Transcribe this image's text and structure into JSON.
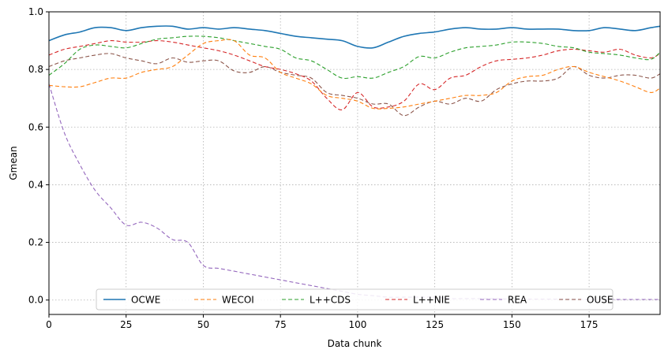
{
  "chart_data": {
    "type": "line",
    "title": "",
    "xlabel": "Data chunk",
    "ylabel": "Gmean",
    "xlim": [
      0,
      198
    ],
    "ylim": [
      -0.05,
      1.0
    ],
    "xticks": [
      0,
      25,
      50,
      75,
      100,
      125,
      150,
      175
    ],
    "yticks": [
      0.0,
      0.2,
      0.4,
      0.6,
      0.8,
      1.0
    ],
    "grid": true,
    "legend_position": "bottom-center",
    "series": [
      {
        "name": "OCWE",
        "color": "#1f77b4",
        "dash": "solid",
        "x": [
          0,
          5,
          10,
          15,
          20,
          25,
          30,
          35,
          40,
          45,
          50,
          55,
          60,
          65,
          70,
          75,
          80,
          85,
          90,
          95,
          100,
          105,
          110,
          115,
          120,
          125,
          130,
          135,
          140,
          145,
          150,
          155,
          160,
          165,
          170,
          175,
          180,
          185,
          190,
          195,
          198
        ],
        "y": [
          0.9,
          0.92,
          0.93,
          0.945,
          0.945,
          0.935,
          0.945,
          0.95,
          0.95,
          0.94,
          0.945,
          0.94,
          0.945,
          0.94,
          0.935,
          0.925,
          0.915,
          0.91,
          0.905,
          0.9,
          0.88,
          0.875,
          0.895,
          0.915,
          0.925,
          0.93,
          0.94,
          0.945,
          0.94,
          0.94,
          0.945,
          0.94,
          0.94,
          0.94,
          0.935,
          0.935,
          0.945,
          0.94,
          0.935,
          0.945,
          0.95
        ]
      },
      {
        "name": "WECOI",
        "color": "#ff7f0e",
        "dash": "5,3",
        "x": [
          0,
          5,
          10,
          15,
          20,
          25,
          30,
          35,
          40,
          45,
          50,
          55,
          60,
          65,
          70,
          75,
          80,
          85,
          90,
          95,
          100,
          105,
          110,
          115,
          120,
          125,
          130,
          135,
          140,
          145,
          150,
          155,
          160,
          165,
          170,
          175,
          180,
          185,
          190,
          195,
          198
        ],
        "y": [
          0.745,
          0.74,
          0.74,
          0.755,
          0.77,
          0.77,
          0.79,
          0.8,
          0.81,
          0.85,
          0.89,
          0.9,
          0.9,
          0.85,
          0.84,
          0.79,
          0.77,
          0.75,
          0.71,
          0.7,
          0.69,
          0.665,
          0.665,
          0.67,
          0.68,
          0.69,
          0.7,
          0.71,
          0.71,
          0.72,
          0.76,
          0.775,
          0.78,
          0.8,
          0.81,
          0.79,
          0.775,
          0.76,
          0.74,
          0.72,
          0.735
        ]
      },
      {
        "name": "L++CDS",
        "color": "#2ca02c",
        "dash": "5,3",
        "x": [
          0,
          5,
          10,
          15,
          20,
          25,
          30,
          35,
          40,
          45,
          50,
          55,
          60,
          65,
          70,
          75,
          80,
          85,
          90,
          95,
          100,
          105,
          110,
          115,
          120,
          125,
          130,
          135,
          140,
          145,
          150,
          155,
          160,
          165,
          170,
          175,
          180,
          185,
          190,
          195,
          198
        ],
        "y": [
          0.78,
          0.82,
          0.87,
          0.885,
          0.88,
          0.875,
          0.89,
          0.905,
          0.91,
          0.915,
          0.915,
          0.91,
          0.9,
          0.89,
          0.88,
          0.87,
          0.84,
          0.83,
          0.8,
          0.77,
          0.775,
          0.77,
          0.79,
          0.81,
          0.845,
          0.84,
          0.86,
          0.875,
          0.88,
          0.885,
          0.895,
          0.895,
          0.89,
          0.88,
          0.875,
          0.86,
          0.855,
          0.85,
          0.84,
          0.835,
          0.86
        ]
      },
      {
        "name": "L++NIE",
        "color": "#d62728",
        "dash": "5,3",
        "x": [
          0,
          5,
          10,
          15,
          20,
          25,
          30,
          35,
          40,
          45,
          50,
          55,
          60,
          65,
          70,
          75,
          80,
          85,
          90,
          95,
          100,
          105,
          110,
          115,
          120,
          125,
          130,
          135,
          140,
          145,
          150,
          155,
          160,
          165,
          170,
          175,
          180,
          185,
          190,
          195,
          198
        ],
        "y": [
          0.85,
          0.87,
          0.88,
          0.89,
          0.9,
          0.895,
          0.895,
          0.9,
          0.895,
          0.885,
          0.875,
          0.865,
          0.85,
          0.83,
          0.81,
          0.8,
          0.785,
          0.76,
          0.7,
          0.66,
          0.72,
          0.67,
          0.67,
          0.69,
          0.75,
          0.73,
          0.77,
          0.78,
          0.81,
          0.83,
          0.835,
          0.84,
          0.85,
          0.865,
          0.87,
          0.865,
          0.86,
          0.87,
          0.85,
          0.84,
          0.855
        ]
      },
      {
        "name": "REA",
        "color": "#9467bd",
        "dash": "5,3",
        "x": [
          0,
          5,
          10,
          15,
          20,
          25,
          30,
          35,
          40,
          45,
          50,
          55,
          60,
          65,
          70,
          75,
          80,
          85,
          90,
          95,
          100,
          105,
          110,
          115,
          120,
          125,
          130,
          135,
          140,
          145,
          150,
          155,
          160,
          165,
          170,
          175,
          180,
          185,
          190,
          195,
          198
        ],
        "y": [
          0.75,
          0.58,
          0.47,
          0.38,
          0.32,
          0.26,
          0.27,
          0.25,
          0.21,
          0.2,
          0.12,
          0.11,
          0.1,
          0.09,
          0.08,
          0.07,
          0.06,
          0.05,
          0.04,
          0.03,
          0.02,
          0.015,
          0.01,
          0.01,
          0.01,
          0.01,
          0.005,
          0.005,
          0.005,
          0.005,
          0.003,
          0.003,
          0.003,
          0.003,
          0.003,
          0.002,
          0.002,
          0.002,
          0.002,
          0.002,
          0.002
        ]
      },
      {
        "name": "OUSE",
        "color": "#8c564b",
        "dash": "5,3",
        "x": [
          0,
          5,
          10,
          15,
          20,
          25,
          30,
          35,
          40,
          45,
          50,
          55,
          60,
          65,
          70,
          75,
          80,
          85,
          90,
          95,
          100,
          105,
          110,
          115,
          120,
          125,
          130,
          135,
          140,
          145,
          150,
          155,
          160,
          165,
          170,
          175,
          180,
          185,
          190,
          195,
          198
        ],
        "y": [
          0.81,
          0.83,
          0.84,
          0.85,
          0.855,
          0.84,
          0.83,
          0.82,
          0.84,
          0.825,
          0.83,
          0.83,
          0.795,
          0.79,
          0.81,
          0.79,
          0.78,
          0.77,
          0.72,
          0.71,
          0.7,
          0.68,
          0.68,
          0.64,
          0.67,
          0.69,
          0.68,
          0.7,
          0.69,
          0.73,
          0.75,
          0.76,
          0.76,
          0.77,
          0.81,
          0.78,
          0.77,
          0.78,
          0.78,
          0.77,
          0.785
        ]
      }
    ]
  }
}
